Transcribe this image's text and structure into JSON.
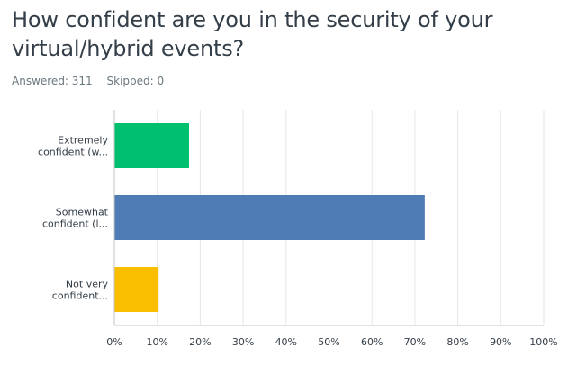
{
  "question": {
    "title": "How confident are you in the security of your virtual/hybrid events?"
  },
  "stats": {
    "answered_label": "Answered: 311",
    "skipped_label": "Skipped: 0"
  },
  "chart_data": {
    "type": "bar",
    "orientation": "horizontal",
    "categories": [
      [
        "Extremely",
        "confident (w..."
      ],
      [
        "Somewhat",
        "confident (l..."
      ],
      [
        "Not very",
        "confident..."
      ]
    ],
    "values": [
      17.4,
      72.3,
      10.3
    ],
    "colors": [
      "#00bf6f",
      "#507cb6",
      "#f9be00"
    ],
    "xlim": [
      0,
      100
    ],
    "ticks": [
      "0%",
      "10%",
      "20%",
      "30%",
      "40%",
      "50%",
      "60%",
      "70%",
      "80%",
      "90%",
      "100%"
    ],
    "grid": true
  }
}
